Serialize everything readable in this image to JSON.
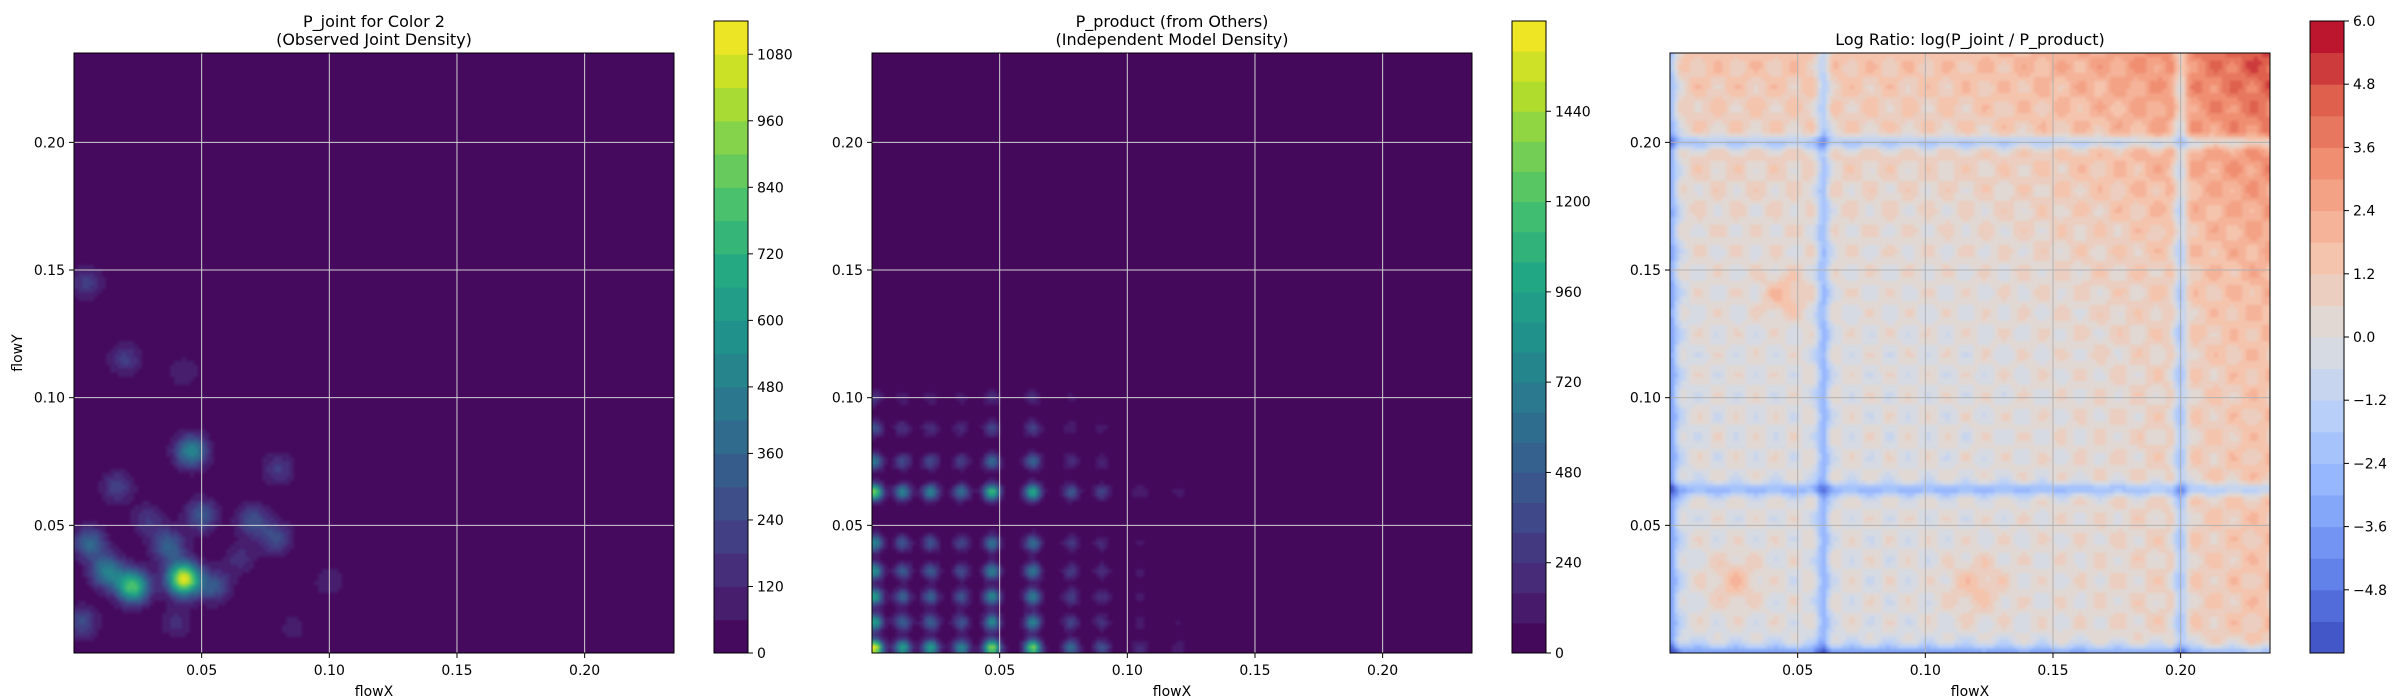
{
  "chart_data": [
    {
      "type": "heatmap",
      "title": "P_joint for Color 2\n(Observed Joint Density)",
      "xlabel": "flowX",
      "ylabel": "flowY",
      "xlim": [
        0.0,
        0.235
      ],
      "ylim": [
        0.0,
        0.235
      ],
      "xticks": [
        0.05,
        0.1,
        0.15,
        0.2
      ],
      "xticklabels": [
        "0.05",
        "0.10",
        "0.15",
        "0.20"
      ],
      "yticks": [
        0.05,
        0.1,
        0.15,
        0.2
      ],
      "yticklabels": [
        "0.05",
        "0.10",
        "0.15",
        "0.20"
      ],
      "grid": true,
      "colormap": "viridis",
      "colorbar": {
        "min": 0,
        "max": 1140,
        "ticks": [
          0,
          120,
          240,
          360,
          480,
          600,
          720,
          840,
          960,
          1080
        ],
        "ticklabels": [
          "0",
          "120",
          "240",
          "360",
          "480",
          "600",
          "720",
          "840",
          "960",
          "1080"
        ],
        "levels": 19
      },
      "peaks": [
        {
          "x": 0.043,
          "y": 0.029,
          "value": 1100
        },
        {
          "x": 0.023,
          "y": 0.026,
          "value": 820
        },
        {
          "x": 0.046,
          "y": 0.079,
          "value": 520
        },
        {
          "x": 0.013,
          "y": 0.032,
          "value": 480
        },
        {
          "x": 0.006,
          "y": 0.043,
          "value": 380
        },
        {
          "x": 0.037,
          "y": 0.042,
          "value": 360
        },
        {
          "x": 0.05,
          "y": 0.054,
          "value": 320
        },
        {
          "x": 0.07,
          "y": 0.052,
          "value": 280
        },
        {
          "x": 0.079,
          "y": 0.045,
          "value": 260
        },
        {
          "x": 0.055,
          "y": 0.026,
          "value": 300
        },
        {
          "x": 0.003,
          "y": 0.012,
          "value": 260
        },
        {
          "x": 0.017,
          "y": 0.065,
          "value": 220
        },
        {
          "x": 0.02,
          "y": 0.115,
          "value": 200
        },
        {
          "x": 0.005,
          "y": 0.145,
          "value": 200
        },
        {
          "x": 0.08,
          "y": 0.072,
          "value": 200
        },
        {
          "x": 0.029,
          "y": 0.052,
          "value": 180
        },
        {
          "x": 0.065,
          "y": 0.037,
          "value": 150
        },
        {
          "x": 0.1,
          "y": 0.028,
          "value": 120
        },
        {
          "x": 0.04,
          "y": 0.012,
          "value": 140
        },
        {
          "x": 0.086,
          "y": 0.01,
          "value": 90
        },
        {
          "x": 0.043,
          "y": 0.11,
          "value": 120
        }
      ]
    },
    {
      "type": "heatmap",
      "title": "P_product (from Others)\n(Independent Model Density)",
      "xlabel": "flowX",
      "ylabel": "",
      "xlim": [
        0.0,
        0.235
      ],
      "ylim": [
        0.0,
        0.235
      ],
      "xticks": [
        0.05,
        0.1,
        0.15,
        0.2
      ],
      "xticklabels": [
        "0.05",
        "0.10",
        "0.15",
        "0.20"
      ],
      "yticks": [
        0.05,
        0.1,
        0.15,
        0.2
      ],
      "yticklabels": [
        "0.05",
        "0.10",
        "0.15",
        "0.20"
      ],
      "grid": true,
      "colormap": "viridis",
      "colorbar": {
        "min": 0,
        "max": 1680,
        "ticks": [
          0,
          240,
          480,
          720,
          960,
          1200,
          1440
        ],
        "ticklabels": [
          "0",
          "240",
          "480",
          "720",
          "960",
          "1200",
          "1440"
        ],
        "levels": 21
      },
      "marginal_x_peaks": [
        {
          "x": 0.001,
          "weight": 1.0
        },
        {
          "x": 0.012,
          "weight": 0.55
        },
        {
          "x": 0.023,
          "weight": 0.55
        },
        {
          "x": 0.035,
          "weight": 0.45
        },
        {
          "x": 0.047,
          "weight": 0.85
        },
        {
          "x": 0.063,
          "weight": 0.8
        },
        {
          "x": 0.078,
          "weight": 0.35
        },
        {
          "x": 0.09,
          "weight": 0.25
        },
        {
          "x": 0.105,
          "weight": 0.12
        },
        {
          "x": 0.12,
          "weight": 0.08
        }
      ],
      "marginal_y_peaks": [
        {
          "y": 0.002,
          "weight": 1.0
        },
        {
          "y": 0.012,
          "weight": 0.55
        },
        {
          "y": 0.022,
          "weight": 0.55
        },
        {
          "y": 0.032,
          "weight": 0.5
        },
        {
          "y": 0.043,
          "weight": 0.45
        },
        {
          "y": 0.063,
          "weight": 0.8
        },
        {
          "y": 0.075,
          "weight": 0.4
        },
        {
          "y": 0.088,
          "weight": 0.25
        },
        {
          "y": 0.1,
          "weight": 0.15
        }
      ]
    },
    {
      "type": "heatmap",
      "title": "Log Ratio: log(P_joint / P_product)",
      "xlabel": "flowX",
      "ylabel": "",
      "xlim": [
        0.0,
        0.235
      ],
      "ylim": [
        0.0,
        0.235
      ],
      "xticks": [
        0.05,
        0.1,
        0.15,
        0.2
      ],
      "xticklabels": [
        "0.05",
        "0.10",
        "0.15",
        "0.20"
      ],
      "yticks": [
        0.05,
        0.1,
        0.15,
        0.2
      ],
      "yticklabels": [
        "0.05",
        "0.10",
        "0.15",
        "0.20"
      ],
      "grid": true,
      "colormap": "coolwarm",
      "colorbar": {
        "min": -6.0,
        "max": 6.0,
        "ticks": [
          -4.8,
          -3.6,
          -2.4,
          -1.2,
          0.0,
          1.2,
          2.4,
          3.6,
          4.8,
          6.0
        ],
        "ticklabels": [
          "−4.8",
          "−3.6",
          "−2.4",
          "−1.2",
          "0.0",
          "1.2",
          "2.4",
          "3.6",
          "4.8",
          "6.0"
        ],
        "levels": 20
      },
      "blue_lines_x": [
        0.2,
        0.06,
        0.0
      ],
      "blue_lines_y": [
        0.2,
        0.064,
        0.0
      ],
      "red_region": {
        "x_from": 0.12,
        "y_from": 0.12,
        "peak": 4.5
      }
    }
  ]
}
